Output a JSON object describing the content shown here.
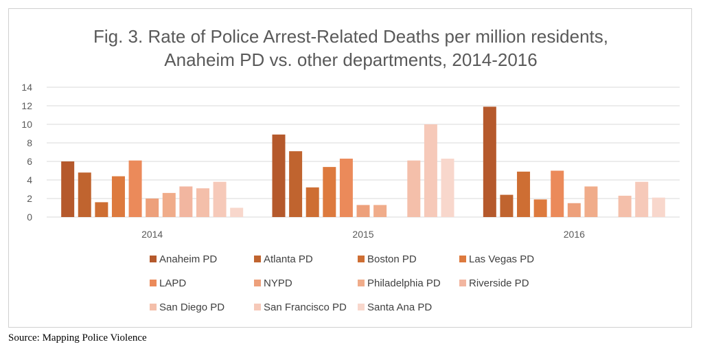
{
  "chart_data": {
    "type": "bar",
    "title": [
      "Fig. 3. Rate of Police Arrest-Related Deaths per million residents,",
      "Anaheim PD vs. other departments, 2014-2016"
    ],
    "categories": [
      "2014",
      "2015",
      "2016"
    ],
    "ylim": [
      0,
      14
    ],
    "yticks": [
      0,
      2,
      4,
      6,
      8,
      10,
      12,
      14
    ],
    "grid": true,
    "legend_position": "bottom",
    "series": [
      {
        "name": "Anaheim PD",
        "color": "#B5592C",
        "values": [
          6.0,
          8.9,
          11.9
        ]
      },
      {
        "name": "Atlanta PD",
        "color": "#C0642F",
        "values": [
          4.8,
          7.1,
          2.4
        ]
      },
      {
        "name": "Boston PD",
        "color": "#CE6E33",
        "values": [
          1.6,
          3.2,
          4.9
        ]
      },
      {
        "name": "Las Vegas PD",
        "color": "#DD7A3E",
        "values": [
          4.4,
          5.4,
          1.9
        ]
      },
      {
        "name": "LAPD",
        "color": "#EB8A5A",
        "values": [
          6.1,
          6.3,
          5.0
        ]
      },
      {
        "name": "NYPD",
        "color": "#EDA07B",
        "values": [
          2.0,
          1.3,
          1.5
        ]
      },
      {
        "name": "Philadelphia PD",
        "color": "#F0AC8A",
        "values": [
          2.6,
          1.3,
          3.3
        ]
      },
      {
        "name": "Riverside PD",
        "color": "#F2B6A0",
        "values": [
          3.3,
          0,
          0
        ]
      },
      {
        "name": "San Diego PD",
        "color": "#F4BFAA",
        "values": [
          3.1,
          6.1,
          2.3
        ]
      },
      {
        "name": "San Francisco PD",
        "color": "#F6C9B9",
        "values": [
          3.8,
          10.0,
          3.8
        ]
      },
      {
        "name": "Santa Ana PD",
        "color": "#F8D7CC",
        "values": [
          1.0,
          6.3,
          2.1
        ]
      }
    ]
  },
  "source": "Source: Mapping Police Violence"
}
